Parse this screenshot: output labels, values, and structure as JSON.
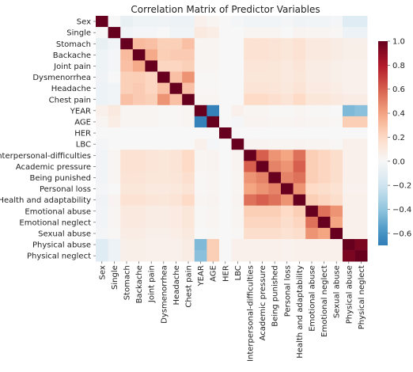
{
  "chart_data": {
    "type": "heatmap",
    "title": "Correlation Matrix of Predictor Variables",
    "xlabel": "",
    "ylabel": "",
    "variables": [
      "Sex",
      "Single",
      "Stomach",
      "Backache",
      "Joint pain",
      "Dysmenorrhea",
      "Headache",
      "Chest pain",
      "YEAR",
      "AGE",
      "HER",
      "LBC",
      "Interpersonal-difficulties",
      "Academic pressure",
      "Being punished",
      "Personal loss",
      "Health and adaptability",
      "Emotional abuse",
      "Emotional neglect",
      "Sexual abuse",
      "Physical abuse",
      "Physical neglect"
    ],
    "matrix": [
      [
        1,
        0,
        -0.08,
        -0.05,
        -0.05,
        -0.04,
        -0.06,
        -0.06,
        0.05,
        0.02,
        0,
        -0.02,
        -0.03,
        -0.03,
        -0.03,
        -0.02,
        -0.04,
        -0.03,
        -0.03,
        -0.02,
        -0.12,
        -0.12
      ],
      [
        0,
        1,
        -0.03,
        -0.02,
        -0.02,
        0,
        -0.03,
        -0.03,
        0.1,
        0.07,
        0,
        0,
        0.02,
        0.02,
        0.02,
        0,
        0.03,
        0.02,
        0.02,
        0.01,
        -0.06,
        -0.06
      ],
      [
        -0.08,
        -0.03,
        1,
        0.32,
        0.3,
        0.24,
        0.24,
        0.3,
        0.02,
        0.02,
        0,
        0,
        0.15,
        0.15,
        0.14,
        0.12,
        0.15,
        0.1,
        0.1,
        0.08,
        0.06,
        0.06
      ],
      [
        -0.05,
        -0.02,
        0.32,
        1,
        0.38,
        0.25,
        0.26,
        0.26,
        0.02,
        0.02,
        0,
        0,
        0.15,
        0.15,
        0.14,
        0.12,
        0.15,
        0.1,
        0.1,
        0.08,
        0.06,
        0.06
      ],
      [
        -0.05,
        -0.02,
        0.3,
        0.38,
        1,
        0.22,
        0.22,
        0.24,
        0.02,
        0.02,
        0,
        0,
        0.13,
        0.13,
        0.12,
        0.1,
        0.13,
        0.08,
        0.08,
        0.06,
        0.05,
        0.05
      ],
      [
        -0.04,
        0,
        0.24,
        0.25,
        0.22,
        1,
        0.3,
        0.45,
        0.01,
        0.01,
        0,
        0,
        0.12,
        0.12,
        0.12,
        0.1,
        0.12,
        0.08,
        0.08,
        0.06,
        0.05,
        0.05
      ],
      [
        -0.06,
        -0.03,
        0.24,
        0.26,
        0.22,
        0.3,
        1,
        0.3,
        0.01,
        0.01,
        0,
        0,
        0.14,
        0.14,
        0.13,
        0.11,
        0.14,
        0.09,
        0.09,
        0.07,
        0.05,
        0.05
      ],
      [
        -0.06,
        -0.03,
        0.3,
        0.26,
        0.24,
        0.45,
        0.3,
        1,
        0.02,
        0.02,
        0,
        0,
        0.2,
        0.2,
        0.17,
        0.14,
        0.2,
        0.12,
        0.12,
        0.1,
        0.08,
        0.08
      ],
      [
        0.05,
        0.1,
        0.02,
        0.02,
        0.02,
        0.01,
        0.01,
        0.02,
        1,
        -0.68,
        0,
        0.05,
        0.02,
        0.02,
        0.01,
        0.01,
        0.02,
        0.01,
        0.01,
        0,
        -0.45,
        -0.42
      ],
      [
        0.02,
        0.07,
        0.02,
        0.02,
        0.02,
        0.01,
        0.01,
        0.02,
        -0.68,
        1,
        0,
        -0.02,
        0.03,
        0.03,
        0.02,
        0.02,
        0.03,
        0.02,
        0.02,
        0.01,
        0.25,
        0.25
      ],
      [
        0,
        0,
        0,
        0,
        0,
        0,
        0,
        0,
        0,
        0,
        1,
        0,
        0,
        0,
        0,
        0,
        0,
        0,
        0,
        0,
        0,
        0
      ],
      [
        -0.02,
        0,
        0,
        0,
        0,
        0,
        0,
        0,
        0.05,
        -0.02,
        0,
        1,
        0.03,
        0.03,
        0.02,
        0.02,
        0.03,
        0.02,
        0.02,
        0.01,
        0.05,
        0.05
      ],
      [
        -0.03,
        0.02,
        0.15,
        0.15,
        0.13,
        0.12,
        0.14,
        0.2,
        0.02,
        0.03,
        0,
        0.03,
        1,
        0.6,
        0.45,
        0.4,
        0.55,
        0.25,
        0.22,
        0.18,
        0.05,
        0.05
      ],
      [
        -0.03,
        0.02,
        0.15,
        0.15,
        0.13,
        0.12,
        0.14,
        0.2,
        0.02,
        0.03,
        0,
        0.03,
        0.6,
        1,
        0.5,
        0.45,
        0.6,
        0.25,
        0.22,
        0.18,
        0.05,
        0.05
      ],
      [
        -0.03,
        0.02,
        0.14,
        0.14,
        0.12,
        0.12,
        0.13,
        0.17,
        0.01,
        0.02,
        0,
        0.02,
        0.45,
        0.5,
        1,
        0.5,
        0.55,
        0.25,
        0.22,
        0.18,
        0.05,
        0.05
      ],
      [
        -0.02,
        0,
        0.12,
        0.12,
        0.1,
        0.1,
        0.11,
        0.14,
        0.01,
        0.02,
        0,
        0.02,
        0.4,
        0.45,
        0.5,
        1,
        0.45,
        0.2,
        0.18,
        0.15,
        0.04,
        0.04
      ],
      [
        -0.04,
        0.03,
        0.15,
        0.15,
        0.13,
        0.12,
        0.14,
        0.2,
        0.02,
        0.03,
        0,
        0.03,
        0.55,
        0.6,
        0.55,
        0.45,
        1,
        0.25,
        0.22,
        0.18,
        0.05,
        0.05
      ],
      [
        -0.03,
        0.02,
        0.1,
        0.1,
        0.08,
        0.08,
        0.09,
        0.12,
        0.01,
        0.02,
        0,
        0.02,
        0.25,
        0.25,
        0.25,
        0.2,
        0.25,
        1,
        0.55,
        0.45,
        0.05,
        0.05
      ],
      [
        -0.03,
        0.02,
        0.1,
        0.1,
        0.08,
        0.08,
        0.09,
        0.12,
        0.01,
        0.02,
        0,
        0.02,
        0.22,
        0.22,
        0.22,
        0.18,
        0.22,
        0.55,
        1,
        0.4,
        0.05,
        0.05
      ],
      [
        -0.02,
        0.01,
        0.08,
        0.08,
        0.06,
        0.06,
        0.07,
        0.1,
        0,
        0.01,
        0,
        0.01,
        0.18,
        0.18,
        0.18,
        0.15,
        0.18,
        0.45,
        0.4,
        1,
        0.05,
        0.05
      ],
      [
        -0.12,
        -0.06,
        0.06,
        0.06,
        0.05,
        0.05,
        0.05,
        0.08,
        -0.45,
        0.25,
        0,
        0.05,
        0.05,
        0.05,
        0.05,
        0.04,
        0.05,
        0.05,
        0.05,
        0.05,
        1,
        0.95
      ],
      [
        -0.12,
        -0.06,
        0.06,
        0.06,
        0.05,
        0.05,
        0.05,
        0.08,
        -0.42,
        0.25,
        0,
        0.05,
        0.05,
        0.05,
        0.05,
        0.04,
        0.05,
        0.05,
        0.05,
        0.05,
        0.95,
        1
      ]
    ],
    "colorbar": {
      "range": [
        -0.7,
        1.0
      ],
      "ticks": [
        -0.6,
        -0.4,
        -0.2,
        0.0,
        0.2,
        0.4,
        0.6,
        0.8,
        1.0
      ],
      "tick_labels": [
        "−0.6",
        "−0.4",
        "−0.2",
        "0.0",
        "0.2",
        "0.4",
        "0.6",
        "0.8",
        "1.0"
      ],
      "colormap": "RdBu_r",
      "color_stops": [
        "#053061",
        "#2166ac",
        "#4393c3",
        "#92c5de",
        "#d1e5f0",
        "#f7f7f7",
        "#fddbc7",
        "#f4a582",
        "#d6604d",
        "#b2182b",
        "#67001f"
      ]
    },
    "grid": false,
    "legend": "colorbar-right"
  }
}
